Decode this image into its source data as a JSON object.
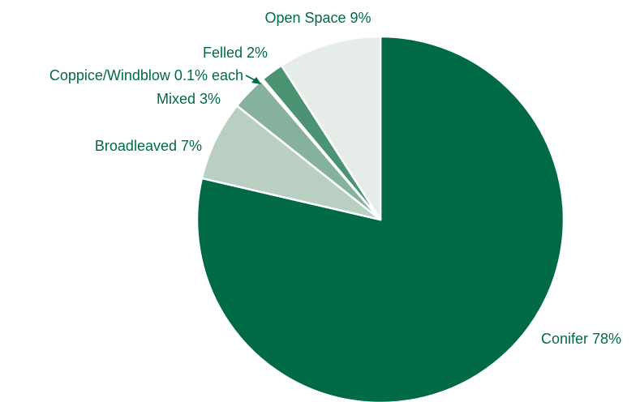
{
  "chart_data": {
    "type": "pie",
    "title": "",
    "start": "top, clockwise",
    "slices": [
      {
        "label": "Conifer 78%",
        "value": 78,
        "color": "#006a47"
      },
      {
        "label": "Broadleaved 7%",
        "value": 7,
        "color": "#b8cfc2"
      },
      {
        "label": "Mixed 3%",
        "value": 3,
        "color": "#86b29d"
      },
      {
        "label": "Coppice",
        "value": 0.1,
        "color": "#dfe9e3"
      },
      {
        "label": "Windblow",
        "value": 0.1,
        "color": "#dfe9e3"
      },
      {
        "label": "Felled 2%",
        "value": 2,
        "color": "#4c9373"
      },
      {
        "label": "Open Space 9%",
        "value": 9,
        "color": "#e6ede9"
      }
    ],
    "annotations": [
      {
        "text": "Coppice/Windblow 0.1% each"
      }
    ],
    "label_color": "#00694a"
  }
}
